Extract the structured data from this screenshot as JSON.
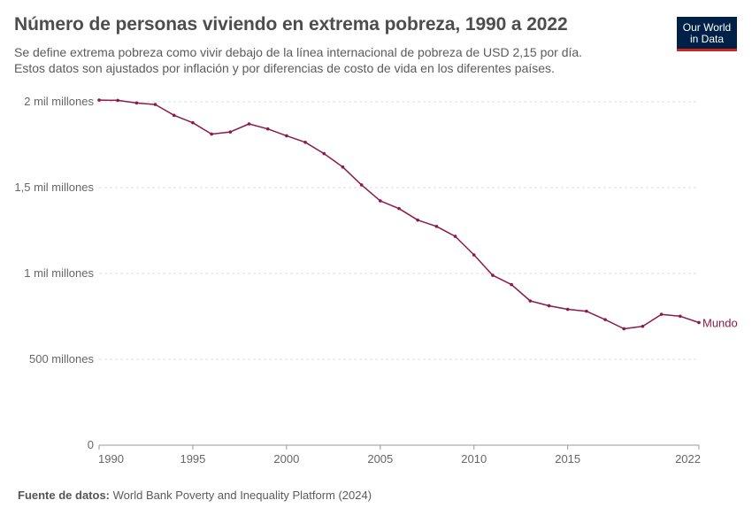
{
  "header": {
    "title": "Número de personas viviendo en extrema pobreza, 1990 a 2022",
    "subtitle_line1": "Se define extrema pobreza como vivir debajo de la línea internacional de pobreza de USD 2,15 por día.",
    "subtitle_line2": "Estos datos son ajustados por inflación y por diferencias de costo de vida en los diferentes países."
  },
  "logo": {
    "line1": "Our World",
    "line2": "in Data"
  },
  "footer": {
    "source_label": "Fuente de datos:",
    "source_text": "World Bank Poverty and Inequality Platform (2024)"
  },
  "colors": {
    "series": "#8b1a4b",
    "grid": "#dddddd",
    "axis": "#666666",
    "text": "#666666"
  },
  "chart_data": {
    "type": "line",
    "title": "Número de personas viviendo en extrema pobreza, 1990 a 2022",
    "xlabel": "",
    "ylabel": "",
    "xlim": [
      1990,
      2022
    ],
    "ylim": [
      0,
      2000000000
    ],
    "grid": true,
    "x_ticks": [
      {
        "value": 1990,
        "label": "1990"
      },
      {
        "value": 1995,
        "label": "1995"
      },
      {
        "value": 2000,
        "label": "2000"
      },
      {
        "value": 2005,
        "label": "2005"
      },
      {
        "value": 2010,
        "label": "2010"
      },
      {
        "value": 2015,
        "label": "2015"
      },
      {
        "value": 2022,
        "label": "2022"
      }
    ],
    "y_ticks": [
      {
        "value": 0,
        "label": "0"
      },
      {
        "value": 500000000,
        "label": "500 millones"
      },
      {
        "value": 1000000000,
        "label": "1 mil millones"
      },
      {
        "value": 1500000000,
        "label": "1,5 mil millones"
      },
      {
        "value": 2000000000,
        "label": "2 mil millones"
      }
    ],
    "series": [
      {
        "name": "Mundo",
        "x": [
          1990,
          1991,
          1992,
          1993,
          1994,
          1995,
          1996,
          1997,
          1998,
          1999,
          2000,
          2001,
          2002,
          2003,
          2004,
          2005,
          2006,
          2007,
          2008,
          2009,
          2010,
          2011,
          2012,
          2013,
          2014,
          2015,
          2016,
          2017,
          2018,
          2019,
          2020,
          2021,
          2022
        ],
        "values": [
          2010000000,
          2008000000,
          1993000000,
          1984000000,
          1921000000,
          1878000000,
          1812000000,
          1824000000,
          1871000000,
          1842000000,
          1802000000,
          1764000000,
          1698000000,
          1620000000,
          1516000000,
          1423000000,
          1378000000,
          1311000000,
          1274000000,
          1216000000,
          1108000000,
          989000000,
          935000000,
          840000000,
          812000000,
          791000000,
          780000000,
          731000000,
          678000000,
          692000000,
          762000000,
          751000000,
          714000000
        ]
      }
    ]
  }
}
